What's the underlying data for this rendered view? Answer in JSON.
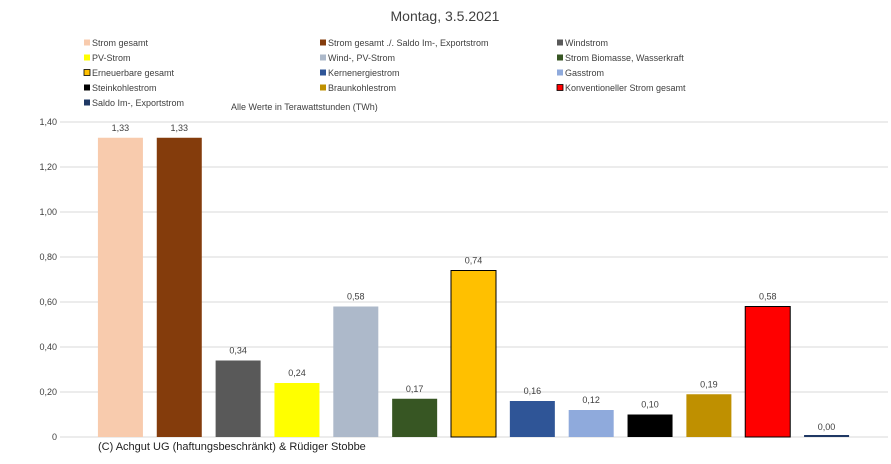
{
  "chart_data": {
    "type": "bar",
    "title": "Montag, 3.5.2021",
    "subtitle": "Alle Werte in Terawattstunden (TWh)",
    "credit": "(C) Achgut UG (haftungsbeschränkt) & Rüdiger Stobbe",
    "categories": [
      "Strom gesamt",
      "Strom gesamt ./. Saldo Im-, Exportstrom",
      "Windstrom",
      "PV-Strom",
      "Wind-, PV-Strom",
      "Strom Biomasse, Wasserkraft",
      "Erneuerbare gesamt",
      "Kernenergiestrom",
      "Gasstrom",
      "Steinkohlestrom",
      "Braunkohlestrom",
      "Konventioneller Strom gesamt",
      "Saldo Im-, Exportstrom"
    ],
    "values": [
      1.33,
      1.33,
      0.34,
      0.24,
      0.58,
      0.17,
      0.74,
      0.16,
      0.12,
      0.1,
      0.19,
      0.58,
      0.0
    ],
    "value_labels": [
      "1,33",
      "1,33",
      "0,34",
      "0,24",
      "0,58",
      "0,17",
      "0,74",
      "0,16",
      "0,12",
      "0,10",
      "0,19",
      "0,58",
      "0,00"
    ],
    "colors": [
      "#f8cbad",
      "#843c0c",
      "#595959",
      "#ffff00",
      "#adb9ca",
      "#375623",
      "#ffc000",
      "#2f5597",
      "#8faadc",
      "#000000",
      "#bf9000",
      "#ff0000",
      "#1f3864"
    ],
    "outlined": [
      false,
      false,
      false,
      false,
      false,
      false,
      true,
      false,
      false,
      false,
      false,
      true,
      false
    ],
    "ylim": [
      0,
      1.4
    ],
    "yticks": [
      0,
      0.2,
      0.4,
      0.6,
      0.8,
      1.0,
      1.2,
      1.4
    ],
    "ytick_labels": [
      "0",
      "0,20",
      "0,40",
      "0,60",
      "0,80",
      "1,00",
      "1,20",
      "1,40"
    ],
    "grid": true,
    "legend_position": "top"
  }
}
